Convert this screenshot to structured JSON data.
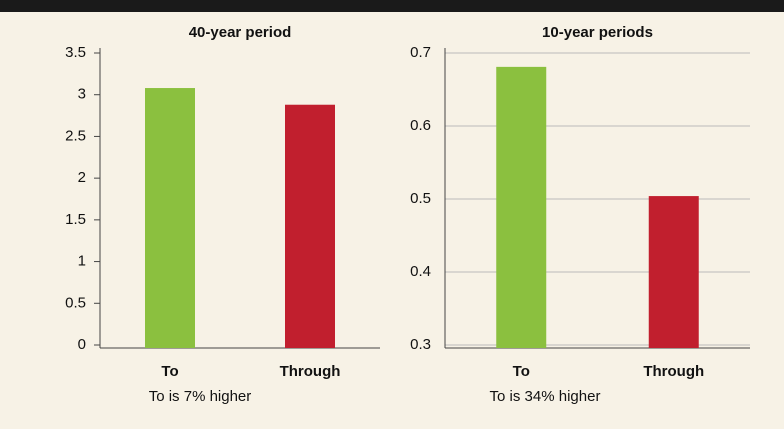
{
  "chart_data": [
    {
      "type": "bar",
      "title": "40-year period",
      "categories": [
        "To",
        "Through"
      ],
      "values": [
        3.08,
        2.88
      ],
      "colors": [
        "#8bc03f",
        "#c11f2e"
      ],
      "ylim": [
        0,
        3.5
      ],
      "yticks": [
        0,
        0.5,
        1,
        1.5,
        2,
        2.5,
        3,
        3.5
      ],
      "grid": false,
      "annotation": "To is 7% higher"
    },
    {
      "type": "bar",
      "title": "10-year periods",
      "categories": [
        "To",
        "Through"
      ],
      "values": [
        0.681,
        0.504
      ],
      "colors": [
        "#8bc03f",
        "#c11f2e"
      ],
      "ylim": [
        0.3,
        0.7
      ],
      "yticks": [
        0.3,
        0.4,
        0.5,
        0.6,
        0.7
      ],
      "grid": true,
      "annotation": "To is 34% higher"
    }
  ]
}
